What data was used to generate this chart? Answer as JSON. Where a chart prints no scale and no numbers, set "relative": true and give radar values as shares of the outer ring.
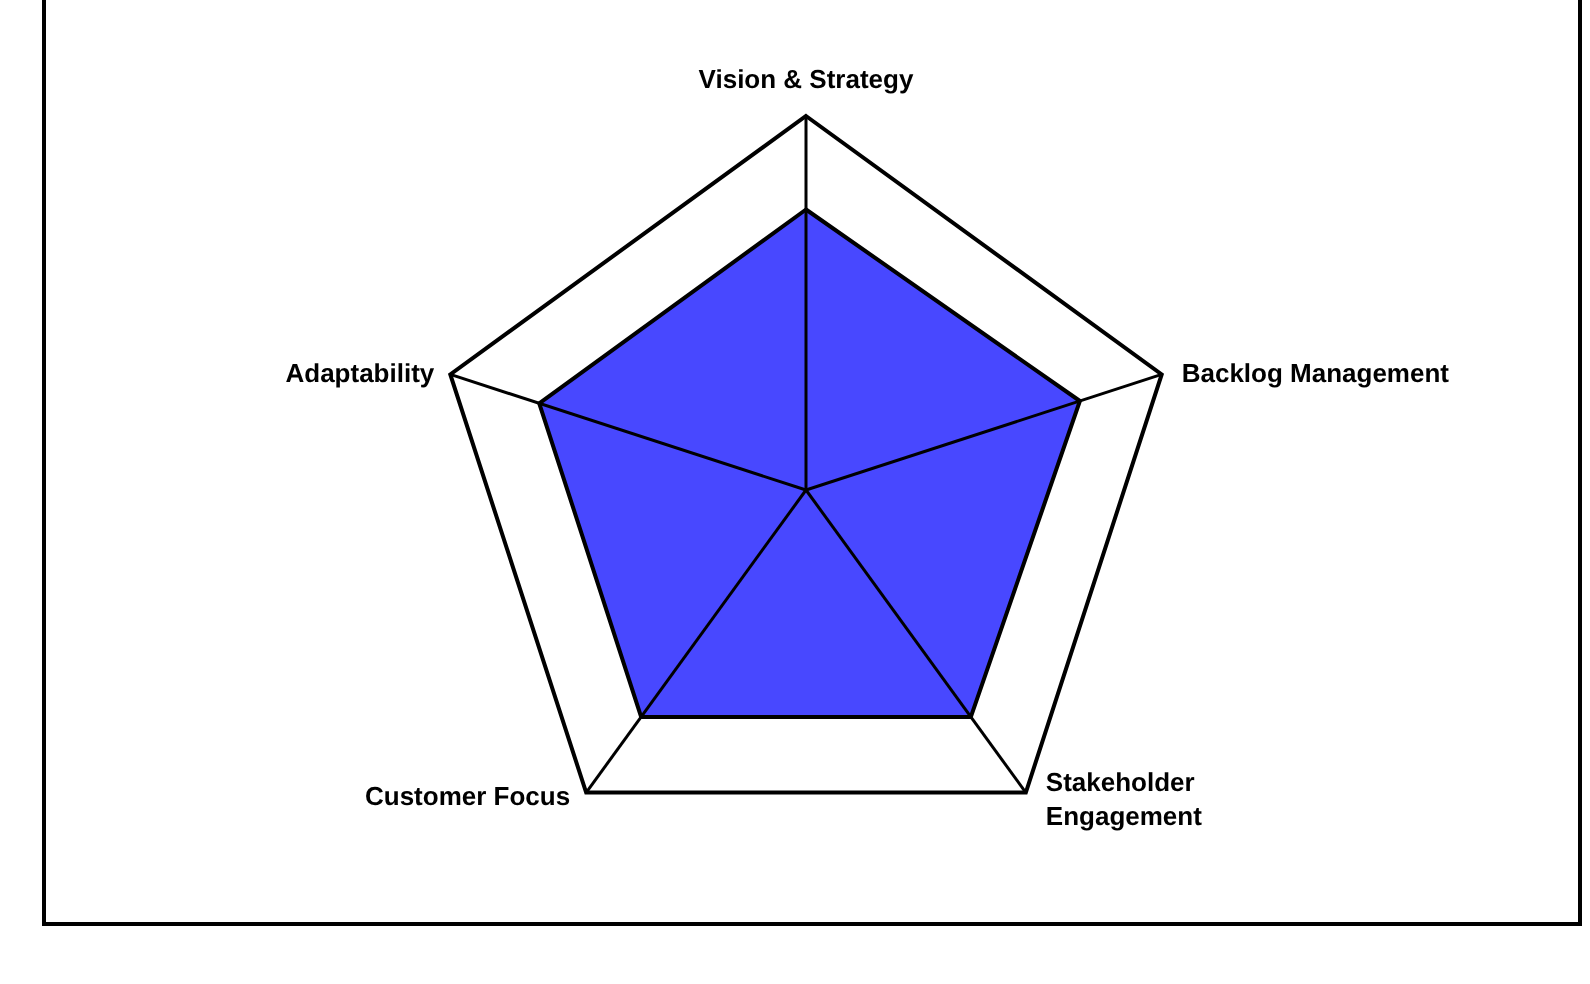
{
  "chart_data": {
    "type": "radar",
    "relative": true,
    "categories": [
      "Vision & Strategy",
      "Backlog Management",
      "Stakeholder Engagement",
      "Customer Focus",
      "Adaptability"
    ],
    "series": [
      {
        "color": "#4848ff",
        "values": [
          0.75,
          0.77,
          0.75,
          0.75,
          0.75
        ]
      }
    ]
  }
}
